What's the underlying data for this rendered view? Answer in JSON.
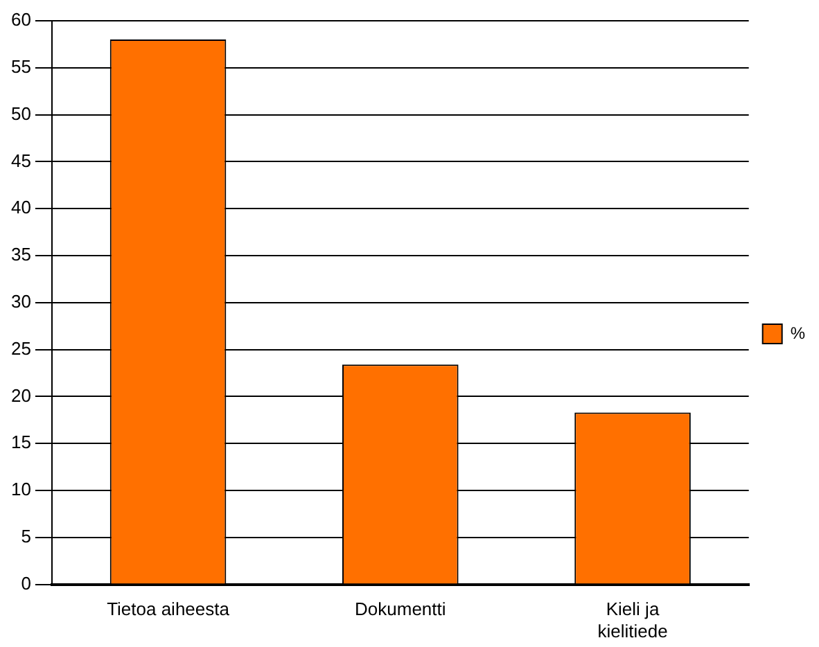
{
  "chart_data": {
    "type": "bar",
    "categories": [
      "Tietoa aiheesta",
      "Dokumentti",
      "Kieli ja kielitiede"
    ],
    "series": [
      {
        "name": "%",
        "color": "#ff7000",
        "values": [
          58,
          23.4,
          18.3
        ]
      }
    ],
    "ylim": [
      0,
      60
    ],
    "yticks": [
      0,
      5,
      10,
      15,
      20,
      25,
      30,
      35,
      40,
      45,
      50,
      55,
      60
    ],
    "grid": "y",
    "legend": "right"
  }
}
